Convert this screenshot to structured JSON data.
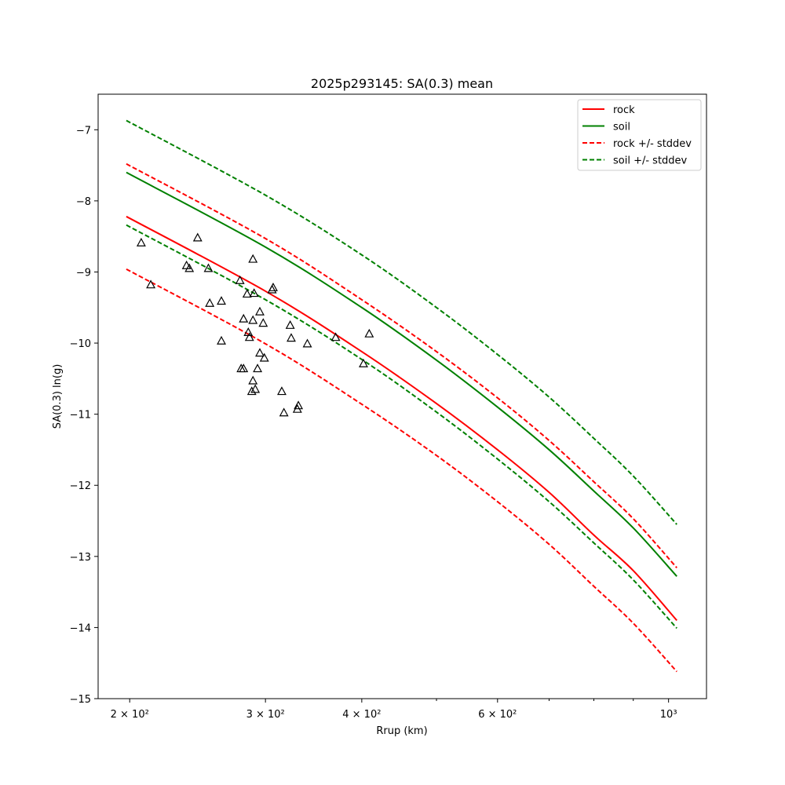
{
  "chart_data": {
    "type": "line",
    "title": "2025p293145: SA(0.3) mean",
    "xlabel": "Rrup (km)",
    "ylabel": "SA(0.3) ln(g)",
    "xscale": "log",
    "xlim": [
      182,
      1120
    ],
    "ylim": [
      -15,
      -6.5
    ],
    "grid": false,
    "legend_position": "top-right",
    "x_ticks": [
      {
        "value": 200,
        "label": "2 × 10²"
      },
      {
        "value": 300,
        "label": "3 × 10²"
      },
      {
        "value": 400,
        "label": "4 × 10²"
      },
      {
        "value": 600,
        "label": "6 × 10²"
      },
      {
        "value": 1000,
        "label": "10³"
      }
    ],
    "x_minor_ticks": [
      500,
      700,
      800,
      900
    ],
    "y_ticks": [
      {
        "value": -15,
        "label": "−15"
      },
      {
        "value": -14,
        "label": "−14"
      },
      {
        "value": -13,
        "label": "−13"
      },
      {
        "value": -12,
        "label": "−12"
      },
      {
        "value": -11,
        "label": "−11"
      },
      {
        "value": -10,
        "label": "−10"
      },
      {
        "value": -9,
        "label": "−9"
      },
      {
        "value": -8,
        "label": "−8"
      },
      {
        "value": -7,
        "label": "−7"
      }
    ],
    "series": [
      {
        "name": "rock",
        "color": "#ff0000",
        "dash": "solid",
        "legend": true,
        "x": [
          198,
          300,
          400,
          500,
          600,
          700,
          800,
          900,
          1025
        ],
        "y": [
          -8.22,
          -9.27,
          -10.12,
          -10.85,
          -11.5,
          -12.1,
          -12.7,
          -13.2,
          -13.9
        ]
      },
      {
        "name": "soil",
        "color": "#008000",
        "dash": "solid",
        "legend": true,
        "x": [
          198,
          300,
          400,
          500,
          600,
          700,
          800,
          900,
          1025
        ],
        "y": [
          -7.6,
          -8.65,
          -9.5,
          -10.24,
          -10.9,
          -11.5,
          -12.08,
          -12.6,
          -13.28
        ]
      },
      {
        "name": "rock +/- stddev",
        "color": "#ff0000",
        "dash": "dashed",
        "legend": true,
        "x": [
          198,
          300,
          400,
          500,
          600,
          700,
          800,
          900,
          1025
        ],
        "y": [
          -7.48,
          -8.53,
          -9.39,
          -10.12,
          -10.77,
          -11.37,
          -11.95,
          -12.47,
          -13.16
        ]
      },
      {
        "name": "",
        "color": "#ff0000",
        "dash": "dashed",
        "legend": false,
        "x": [
          198,
          300,
          400,
          500,
          600,
          700,
          800,
          900,
          1025
        ],
        "y": [
          -8.96,
          -10.01,
          -10.86,
          -11.58,
          -12.23,
          -12.83,
          -13.42,
          -13.94,
          -14.62
        ]
      },
      {
        "name": "soil +/- stddev",
        "color": "#008000",
        "dash": "dashed",
        "legend": true,
        "x": [
          198,
          300,
          400,
          500,
          600,
          700,
          800,
          900,
          1025
        ],
        "y": [
          -6.87,
          -7.92,
          -8.76,
          -9.5,
          -10.16,
          -10.76,
          -11.34,
          -11.87,
          -12.55
        ]
      },
      {
        "name": "",
        "color": "#008000",
        "dash": "dashed",
        "legend": false,
        "x": [
          198,
          300,
          400,
          500,
          600,
          700,
          800,
          900,
          1025
        ],
        "y": [
          -8.34,
          -9.39,
          -10.23,
          -10.97,
          -11.63,
          -12.23,
          -12.81,
          -13.33,
          -14.01
        ]
      }
    ],
    "observations": {
      "marker": "triangle-open",
      "color": "#000000",
      "points": [
        [
          207,
          -8.59
        ],
        [
          213,
          -9.18
        ],
        [
          237,
          -8.91
        ],
        [
          239,
          -8.95
        ],
        [
          245,
          -8.52
        ],
        [
          253,
          -8.95
        ],
        [
          254,
          -9.44
        ],
        [
          263,
          -9.41
        ],
        [
          263,
          -9.97
        ],
        [
          278,
          -9.12
        ],
        [
          279,
          -10.36
        ],
        [
          281,
          -9.66
        ],
        [
          281,
          -10.36
        ],
        [
          284,
          -9.31
        ],
        [
          285,
          -9.85
        ],
        [
          286,
          -9.92
        ],
        [
          288,
          -10.68
        ],
        [
          289,
          -8.82
        ],
        [
          289,
          -9.68
        ],
        [
          289,
          -10.53
        ],
        [
          290,
          -9.3
        ],
        [
          291,
          -10.65
        ],
        [
          293,
          -10.36
        ],
        [
          295,
          -9.56
        ],
        [
          295,
          -10.14
        ],
        [
          298,
          -9.72
        ],
        [
          299,
          -10.21
        ],
        [
          306,
          -9.25
        ],
        [
          307,
          -9.22
        ],
        [
          315,
          -10.68
        ],
        [
          317,
          -10.98
        ],
        [
          323,
          -9.75
        ],
        [
          324,
          -9.93
        ],
        [
          330,
          -10.93
        ],
        [
          331,
          -10.88
        ],
        [
          340,
          -10.01
        ],
        [
          370,
          -9.92
        ],
        [
          402,
          -10.29
        ],
        [
          409,
          -9.87
        ]
      ]
    }
  }
}
